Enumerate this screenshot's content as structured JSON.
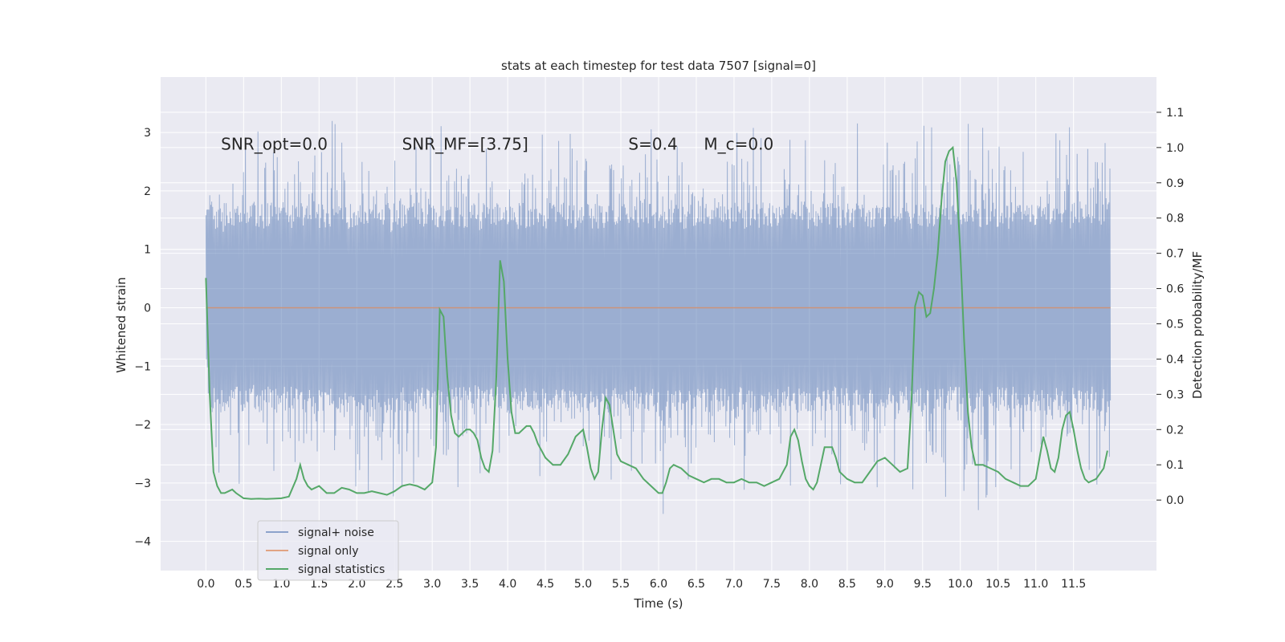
{
  "chart_data": {
    "type": "line",
    "title": "stats at each timestep for test data 7507 [signal=0]",
    "xlabel": "Time (s)",
    "ylabel": "Whitened strain",
    "ylabel_right": "Detection probability/MF",
    "xlim": [
      -0.6,
      12.6
    ],
    "ylim": [
      -4.5,
      3.95
    ],
    "ylim_right": [
      -0.2,
      1.2
    ],
    "xticks": [
      "0.0",
      "0.5",
      "1.0",
      "1.5",
      "2.0",
      "2.5",
      "3.0",
      "3.5",
      "4.0",
      "4.5",
      "5.0",
      "5.5",
      "6.0",
      "6.5",
      "7.0",
      "7.5",
      "8.0",
      "8.5",
      "9.0",
      "9.5",
      "10.0",
      "10.5",
      "11.0",
      "11.5"
    ],
    "yticks": [
      "−4",
      "−3",
      "−2",
      "−1",
      "0",
      "1",
      "2",
      "3"
    ],
    "yticks_right": [
      "0.0",
      "0.1",
      "0.2",
      "0.3",
      "0.4",
      "0.5",
      "0.6",
      "0.7",
      "0.8",
      "0.9",
      "1.0",
      "1.1"
    ],
    "grid": true,
    "annotations": [
      {
        "text": "SNR_opt=0.0",
        "x": 0.2,
        "y": 2.8
      },
      {
        "text": "SNR_MF=[3.75]",
        "x": 2.6,
        "y": 2.8
      },
      {
        "text": "S=0.4",
        "x": 5.6,
        "y": 2.8
      },
      {
        "text": "M_c=0.0",
        "x": 6.6,
        "y": 2.8
      }
    ],
    "legend": {
      "placement": "lower-left",
      "entries": [
        "signal+ noise",
        "signal only",
        "signal statistics"
      ]
    },
    "colors": {
      "noise": "#4c72b0",
      "signal": "#dd8452",
      "stats": "#55a868",
      "background": "#eaeaf2",
      "grid": "#ffffff"
    },
    "series": [
      {
        "name": "signal+ noise",
        "axis": "left",
        "envelope_x": [
          0.0,
          0.2,
          0.4,
          0.6,
          0.8,
          1.0,
          1.2,
          1.4,
          1.6,
          1.8,
          2.0,
          2.2,
          2.4,
          2.6,
          2.8,
          3.0,
          3.2,
          3.4,
          3.6,
          3.8,
          4.0,
          4.2,
          4.4,
          4.6,
          4.8,
          5.0,
          5.2,
          5.4,
          5.6,
          5.8,
          6.0,
          6.2,
          6.4,
          6.6,
          6.8,
          7.0,
          7.2,
          7.4,
          7.6,
          7.8,
          8.0,
          8.2,
          8.4,
          8.6,
          8.8,
          9.0,
          9.2,
          9.4,
          9.6,
          9.8,
          10.0,
          10.2,
          10.4,
          10.6,
          10.8,
          11.0,
          11.2,
          11.4,
          11.6,
          11.8,
          11.99
        ],
        "envelope_max": [
          2.6,
          2.8,
          3.0,
          2.9,
          3.2,
          3.6,
          3.2,
          3.4,
          3.5,
          3.1,
          3.2,
          3.0,
          2.9,
          2.8,
          2.9,
          3.1,
          3.3,
          3.2,
          2.9,
          3.1,
          3.2,
          2.9,
          3.0,
          3.1,
          3.0,
          3.3,
          3.0,
          3.2,
          3.1,
          3.0,
          3.4,
          3.2,
          3.1,
          3.0,
          3.2,
          3.1,
          3.3,
          3.0,
          3.2,
          3.0,
          3.3,
          3.2,
          3.1,
          3.2,
          3.0,
          3.2,
          3.5,
          3.3,
          3.2,
          3.4,
          3.3,
          3.2,
          3.1,
          3.2,
          3.0,
          3.1,
          3.2,
          3.3,
          3.0,
          3.3,
          3.0
        ],
        "envelope_min": [
          -1.8,
          -3.0,
          -3.2,
          -2.9,
          -3.1,
          -3.3,
          -2.9,
          -3.1,
          -3.2,
          -3.0,
          -3.6,
          -3.2,
          -3.8,
          -3.1,
          -3.3,
          -3.0,
          -3.3,
          -3.0,
          -2.9,
          -3.1,
          -3.3,
          -3.0,
          -3.2,
          -3.1,
          -3.0,
          -3.2,
          -3.0,
          -3.3,
          -3.1,
          -3.0,
          -3.7,
          -3.2,
          -3.0,
          -3.1,
          -3.3,
          -3.4,
          -3.1,
          -3.2,
          -3.0,
          -3.1,
          -3.3,
          -3.2,
          -3.1,
          -3.3,
          -3.0,
          -3.2,
          -3.2,
          -3.1,
          -3.5,
          -3.7,
          -3.6,
          -3.8,
          -3.2,
          -3.0,
          -3.2,
          -3.1,
          -3.3,
          -3.0,
          -3.1,
          -3.2,
          -2.8
        ]
      },
      {
        "name": "signal only",
        "axis": "left",
        "x": [
          0.0,
          11.99
        ],
        "y": [
          0.0,
          0.0
        ]
      },
      {
        "name": "signal statistics",
        "axis": "right",
        "x": [
          0.0,
          0.05,
          0.1,
          0.15,
          0.2,
          0.25,
          0.3,
          0.35,
          0.4,
          0.5,
          0.6,
          0.7,
          0.8,
          0.9,
          1.0,
          1.1,
          1.2,
          1.25,
          1.3,
          1.35,
          1.4,
          1.5,
          1.6,
          1.7,
          1.8,
          1.9,
          2.0,
          2.1,
          2.2,
          2.3,
          2.4,
          2.5,
          2.6,
          2.7,
          2.8,
          2.9,
          3.0,
          3.05,
          3.1,
          3.15,
          3.2,
          3.25,
          3.3,
          3.35,
          3.4,
          3.45,
          3.5,
          3.55,
          3.6,
          3.65,
          3.7,
          3.75,
          3.8,
          3.85,
          3.9,
          3.95,
          4.0,
          4.05,
          4.1,
          4.15,
          4.2,
          4.25,
          4.3,
          4.35,
          4.4,
          4.5,
          4.6,
          4.7,
          4.8,
          4.9,
          5.0,
          5.05,
          5.1,
          5.15,
          5.2,
          5.25,
          5.3,
          5.35,
          5.4,
          5.45,
          5.5,
          5.6,
          5.7,
          5.8,
          5.9,
          6.0,
          6.05,
          6.1,
          6.15,
          6.2,
          6.3,
          6.4,
          6.5,
          6.6,
          6.7,
          6.8,
          6.9,
          7.0,
          7.1,
          7.2,
          7.3,
          7.4,
          7.5,
          7.6,
          7.7,
          7.75,
          7.8,
          7.85,
          7.9,
          7.95,
          8.0,
          8.05,
          8.1,
          8.15,
          8.2,
          8.3,
          8.35,
          8.4,
          8.5,
          8.6,
          8.7,
          8.8,
          8.9,
          9.0,
          9.1,
          9.2,
          9.3,
          9.35,
          9.4,
          9.45,
          9.5,
          9.55,
          9.6,
          9.65,
          9.7,
          9.75,
          9.8,
          9.85,
          9.9,
          9.95,
          10.0,
          10.05,
          10.1,
          10.15,
          10.2,
          10.25,
          10.3,
          10.4,
          10.5,
          10.6,
          10.7,
          10.8,
          10.9,
          11.0,
          11.05,
          11.1,
          11.15,
          11.2,
          11.25,
          11.3,
          11.35,
          11.4,
          11.45,
          11.5,
          11.55,
          11.6,
          11.65,
          11.7,
          11.8,
          11.9,
          11.95
        ],
        "y": [
          0.63,
          0.3,
          0.08,
          0.04,
          0.02,
          0.02,
          0.025,
          0.03,
          0.02,
          0.005,
          0.003,
          0.004,
          0.003,
          0.004,
          0.005,
          0.01,
          0.06,
          0.1,
          0.06,
          0.04,
          0.03,
          0.04,
          0.02,
          0.02,
          0.035,
          0.03,
          0.02,
          0.02,
          0.025,
          0.02,
          0.015,
          0.025,
          0.04,
          0.045,
          0.04,
          0.03,
          0.05,
          0.15,
          0.54,
          0.52,
          0.35,
          0.24,
          0.19,
          0.18,
          0.19,
          0.2,
          0.2,
          0.19,
          0.17,
          0.12,
          0.09,
          0.08,
          0.14,
          0.35,
          0.68,
          0.62,
          0.4,
          0.25,
          0.19,
          0.19,
          0.2,
          0.21,
          0.21,
          0.19,
          0.16,
          0.12,
          0.1,
          0.1,
          0.13,
          0.18,
          0.2,
          0.15,
          0.09,
          0.06,
          0.08,
          0.2,
          0.29,
          0.27,
          0.2,
          0.13,
          0.11,
          0.1,
          0.09,
          0.06,
          0.04,
          0.02,
          0.02,
          0.05,
          0.09,
          0.1,
          0.09,
          0.07,
          0.06,
          0.05,
          0.06,
          0.06,
          0.05,
          0.05,
          0.06,
          0.05,
          0.05,
          0.04,
          0.05,
          0.06,
          0.1,
          0.18,
          0.2,
          0.17,
          0.11,
          0.06,
          0.04,
          0.03,
          0.05,
          0.1,
          0.15,
          0.15,
          0.12,
          0.08,
          0.06,
          0.05,
          0.05,
          0.08,
          0.11,
          0.12,
          0.1,
          0.08,
          0.09,
          0.27,
          0.55,
          0.59,
          0.58,
          0.52,
          0.53,
          0.6,
          0.7,
          0.85,
          0.96,
          0.99,
          1.0,
          0.9,
          0.7,
          0.45,
          0.25,
          0.15,
          0.1,
          0.1,
          0.1,
          0.09,
          0.08,
          0.06,
          0.05,
          0.04,
          0.04,
          0.06,
          0.12,
          0.18,
          0.14,
          0.09,
          0.08,
          0.12,
          0.2,
          0.24,
          0.25,
          0.2,
          0.14,
          0.09,
          0.06,
          0.05,
          0.06,
          0.09,
          0.14
        ]
      }
    ]
  }
}
